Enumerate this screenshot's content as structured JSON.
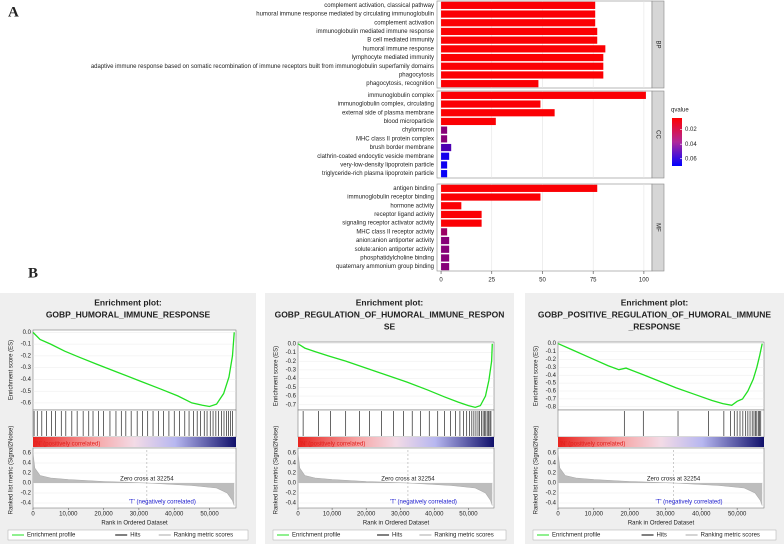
{
  "chart_data": [
    {
      "type": "bar",
      "panel_label": "A",
      "xlim": [
        -2,
        104
      ],
      "xticks": [
        0,
        25,
        50,
        75,
        100
      ],
      "colorbar": {
        "title": "qvalue",
        "lim": [
          0.004,
          0.07
        ],
        "ticks": [
          0.02,
          0.04,
          0.06
        ],
        "low_color": "#ff0000",
        "high_color": "#0000ff"
      },
      "facets": [
        {
          "name": "BP",
          "categories": [
            "complement activation, classical pathway",
            "humoral immune response mediated by circulating immunoglobulin",
            "complement activation",
            "immunoglobulin mediated immune response",
            "B cell mediated immunity",
            "humoral immune response",
            "lymphocyte mediated immunity",
            "adaptive immune response based on somatic recombination of immune receptors built from immunoglobulin superfamily domains",
            "phagocytosis",
            "phagocytosis, recognition"
          ],
          "values": [
            76,
            76,
            76,
            77,
            77,
            81,
            80,
            80,
            80,
            48
          ],
          "qvalues": [
            0.005,
            0.005,
            0.005,
            0.005,
            0.005,
            0.005,
            0.005,
            0.005,
            0.005,
            0.005
          ]
        },
        {
          "name": "CC",
          "categories": [
            "immunoglobulin complex",
            "immunoglobulin complex, circulating",
            "external side of plasma membrane",
            "blood microparticle",
            "chylomicron",
            "MHC class II protein complex",
            "brush border membrane",
            "clathrin-coated endocytic vesicle membrane",
            "very-low-density lipoprotein particle",
            "triglyceride-rich plasma lipoprotein particle"
          ],
          "values": [
            101,
            49,
            56,
            27,
            3,
            3,
            5,
            4,
            3,
            3
          ],
          "qvalues": [
            0.005,
            0.005,
            0.005,
            0.005,
            0.035,
            0.035,
            0.05,
            0.065,
            0.066,
            0.068
          ]
        },
        {
          "name": "MF",
          "categories": [
            "antigen binding",
            "immunoglobulin receptor binding",
            "hormone activity",
            "receptor ligand activity",
            "signaling receptor activator activity",
            "MHC class II receptor activity",
            "anion:anion antiporter activity",
            "solute:anion antiporter activity",
            "phosphatidylcholine binding",
            "quaternary ammonium group binding"
          ],
          "values": [
            77,
            49,
            10,
            20,
            20,
            3,
            4,
            4,
            4,
            4
          ],
          "qvalues": [
            0.005,
            0.005,
            0.005,
            0.005,
            0.005,
            0.03,
            0.035,
            0.035,
            0.035,
            0.035
          ]
        }
      ]
    },
    {
      "type": "gsea",
      "panel_label": "B",
      "title": [
        "Enrichment plot:",
        "GOBP_HUMORAL_IMMUNE_RESPONSE"
      ],
      "es_ylabel": "Enrichment score (ES)",
      "rank_ylabel": "Ranked list metric (Signal2Noise)",
      "xlabel": "Rank in Ordered Dataset",
      "xlim": [
        0,
        57500
      ],
      "xticks": [
        0,
        {
          "value": 10000,
          "label": "10,000"
        },
        {
          "value": 20000,
          "label": "20,000"
        },
        {
          "value": 30000,
          "label": "30,000"
        },
        {
          "value": 40000,
          "label": "40,000"
        },
        {
          "value": 50000,
          "label": "50,000"
        }
      ],
      "es_ylim": [
        -0.66,
        0.02
      ],
      "es_yticks": [
        {
          "value": 0,
          "label": "0.0"
        },
        -0.1,
        -0.2,
        -0.3,
        -0.4,
        -0.5,
        -0.6
      ],
      "x": [
        0,
        2000,
        5000,
        9000,
        13000,
        18000,
        24000,
        30000,
        36000,
        41000,
        45000,
        48000,
        50000,
        52000,
        54000,
        55500,
        56500,
        57000
      ],
      "es": [
        0,
        -0.06,
        -0.1,
        -0.16,
        -0.21,
        -0.27,
        -0.34,
        -0.41,
        -0.48,
        -0.54,
        -0.6,
        -0.62,
        -0.63,
        -0.61,
        -0.52,
        -0.38,
        -0.2,
        0
      ],
      "hits": [
        300,
        1200,
        2500,
        3800,
        5200,
        6400,
        8000,
        9300,
        11000,
        12500,
        14200,
        15800,
        17000,
        18500,
        20000,
        21800,
        23500,
        25000,
        26300,
        27800,
        29500,
        31000,
        32500,
        34000,
        35500,
        37000,
        38500,
        40000,
        41500,
        43000,
        44200,
        45500,
        46500,
        47500,
        48500,
        49300,
        50200,
        51000,
        51800,
        52600,
        53400,
        54100,
        54800,
        55400,
        56000,
        56500
      ],
      "rank_x": [
        0,
        500,
        2000,
        5000,
        10000,
        20000,
        32254,
        45000,
        52000,
        55000,
        56500,
        57000
      ],
      "rank_values": [
        0.6,
        0.3,
        0.15,
        0.1,
        0.07,
        0.03,
        0,
        -0.05,
        -0.1,
        -0.2,
        -0.35,
        -0.45
      ],
      "rank_ylim": [
        -0.5,
        0.7
      ],
      "rank_yticks": [
        0.6,
        0.4,
        0.2,
        {
          "value": 0,
          "label": "0.0"
        },
        -0.2,
        -0.4
      ],
      "pos_label": "'N' (positively correlated)",
      "neg_label": "'T' (negatively correlated)",
      "zero_cross": 32254,
      "zero_cross_label": "Zero cross at 32254",
      "legend": [
        "Enrichment profile",
        "Hits",
        "Ranking metric scores"
      ]
    },
    {
      "type": "gsea",
      "title": [
        "Enrichment plot:",
        "GOBP_REGULATION_OF_HUMORAL_IMMUNE_RESPON",
        "SE"
      ],
      "es_ylabel": "Enrichment score (ES)",
      "rank_ylabel": "Ranked list metric (Signal2Noise)",
      "xlabel": "Rank in Ordered Dataset",
      "xlim": [
        0,
        57500
      ],
      "xticks": [
        0,
        {
          "value": 10000,
          "label": "10,000"
        },
        {
          "value": 20000,
          "label": "20,000"
        },
        {
          "value": 30000,
          "label": "30,000"
        },
        {
          "value": 40000,
          "label": "40,000"
        },
        {
          "value": 50000,
          "label": "50,000"
        }
      ],
      "es_ylim": [
        -0.76,
        0.02
      ],
      "es_yticks": [
        {
          "value": 0,
          "label": "0.0"
        },
        -0.1,
        -0.2,
        -0.3,
        -0.4,
        -0.5,
        -0.6,
        -0.7
      ],
      "x": [
        0,
        2000,
        5000,
        9000,
        14000,
        20000,
        26000,
        32000,
        38000,
        43000,
        47000,
        50000,
        52000,
        53500,
        55000,
        56000,
        56800,
        57000
      ],
      "es": [
        0,
        -0.05,
        -0.09,
        -0.14,
        -0.2,
        -0.28,
        -0.36,
        -0.44,
        -0.53,
        -0.61,
        -0.67,
        -0.71,
        -0.73,
        -0.71,
        -0.6,
        -0.42,
        -0.2,
        0
      ],
      "hits": [
        1500,
        6000,
        9500,
        14000,
        18000,
        21000,
        24500,
        28000,
        31000,
        33500,
        36000,
        38500,
        41000,
        43000,
        44800,
        46200,
        47500,
        48600,
        49500,
        50300,
        51000,
        51600,
        52200,
        52800,
        53300,
        53800,
        54300,
        54700,
        55100,
        55500,
        55900,
        56300,
        56600
      ],
      "rank_x": [
        0,
        500,
        2000,
        5000,
        10000,
        20000,
        32254,
        45000,
        52000,
        55000,
        56500,
        57000
      ],
      "rank_values": [
        0.6,
        0.3,
        0.15,
        0.1,
        0.07,
        0.03,
        0,
        -0.05,
        -0.1,
        -0.2,
        -0.35,
        -0.45
      ],
      "rank_ylim": [
        -0.5,
        0.7
      ],
      "rank_yticks": [
        0.6,
        0.4,
        0.2,
        {
          "value": 0,
          "label": "0.0"
        },
        -0.2,
        -0.4
      ],
      "pos_label": "'N' (positively correlated)",
      "neg_label": "'T' (negatively correlated)",
      "zero_cross": 32254,
      "zero_cross_label": "Zero cross at 32254",
      "legend": [
        "Enrichment profile",
        "Hits",
        "Ranking metric scores"
      ]
    },
    {
      "type": "gsea",
      "title": [
        "Enrichment plot:",
        "GOBP_POSITIVE_REGULATION_OF_HUMORAL_IMMUNE",
        "_RESPONSE"
      ],
      "es_ylabel": "Enrichment score (ES)",
      "rank_ylabel": "Ranked list metric (Signal2Noise)",
      "xlabel": "Rank in Ordered Dataset",
      "xlim": [
        0,
        57500
      ],
      "xticks": [
        0,
        {
          "value": 10000,
          "label": "10,000"
        },
        {
          "value": 20000,
          "label": "20,000"
        },
        {
          "value": 30000,
          "label": "30,000"
        },
        {
          "value": 40000,
          "label": "40,000"
        },
        {
          "value": 50000,
          "label": "50,000"
        }
      ],
      "es_ylim": [
        -0.84,
        0.02
      ],
      "es_yticks": [
        {
          "value": 0,
          "label": "0.0"
        },
        -0.1,
        -0.2,
        -0.3,
        -0.4,
        -0.5,
        -0.6,
        -0.7,
        -0.8
      ],
      "x": [
        0,
        4000,
        9000,
        14000,
        17000,
        19000,
        23000,
        28000,
        33000,
        38000,
        43000,
        46000,
        48500,
        50000,
        51500,
        53000,
        54500,
        55500,
        56300,
        57000
      ],
      "es": [
        0,
        -0.08,
        -0.18,
        -0.28,
        -0.33,
        -0.31,
        -0.38,
        -0.47,
        -0.56,
        -0.64,
        -0.72,
        -0.76,
        -0.78,
        -0.73,
        -0.7,
        -0.6,
        -0.45,
        -0.3,
        -0.15,
        0
      ],
      "hits": [
        18500,
        23800,
        33500,
        42000,
        46300,
        48200,
        49200,
        50000,
        50800,
        51600,
        52400,
        53000,
        53600,
        54200,
        54700,
        55100,
        55500,
        55900,
        56300,
        56600
      ],
      "rank_x": [
        0,
        500,
        2000,
        5000,
        10000,
        20000,
        32254,
        45000,
        52000,
        55000,
        56500,
        57000
      ],
      "rank_values": [
        0.6,
        0.3,
        0.15,
        0.1,
        0.07,
        0.03,
        0,
        -0.05,
        -0.1,
        -0.2,
        -0.35,
        -0.45
      ],
      "rank_ylim": [
        -0.5,
        0.7
      ],
      "rank_yticks": [
        0.6,
        0.4,
        0.2,
        {
          "value": 0,
          "label": "0.0"
        },
        -0.2,
        -0.4
      ],
      "pos_label": "'N' (positively correlated)",
      "neg_label": "'T' (negatively correlated)",
      "zero_cross": 32254,
      "zero_cross_label": "Zero cross at 32254",
      "legend": [
        "Enrichment profile",
        "Hits",
        "Ranking metric scores"
      ]
    }
  ]
}
